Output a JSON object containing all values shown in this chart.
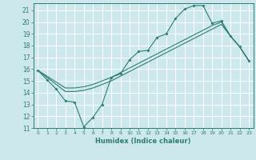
{
  "xlabel": "Humidex (Indice chaleur)",
  "xlim": [
    -0.5,
    23.5
  ],
  "ylim": [
    11,
    21.6
  ],
  "yticks": [
    11,
    12,
    13,
    14,
    15,
    16,
    17,
    18,
    19,
    20,
    21
  ],
  "xticks": [
    0,
    1,
    2,
    3,
    4,
    5,
    6,
    7,
    8,
    9,
    10,
    11,
    12,
    13,
    14,
    15,
    16,
    17,
    18,
    19,
    20,
    21,
    22,
    23
  ],
  "bg_color": "#cce8ec",
  "line_color": "#2e7d72",
  "grid_color": "#ffffff",
  "line1_x": [
    0,
    1,
    2,
    3,
    4,
    5,
    6,
    7,
    8,
    9,
    10,
    11,
    12,
    13,
    14,
    15,
    16,
    17,
    18,
    19,
    20,
    21,
    22,
    23
  ],
  "line1_y": [
    15.9,
    15.1,
    14.3,
    13.3,
    13.2,
    11.1,
    11.9,
    13.0,
    15.3,
    15.6,
    16.8,
    17.5,
    17.6,
    18.7,
    19.0,
    20.3,
    21.1,
    21.4,
    21.4,
    19.9,
    20.1,
    18.8,
    17.9,
    16.7
  ],
  "line2_x": [
    0,
    1,
    2,
    3,
    4,
    5,
    6,
    7,
    8,
    9,
    10,
    11,
    12,
    13,
    14,
    15,
    16,
    17,
    18,
    19,
    20,
    21,
    22,
    23
  ],
  "line2_y": [
    15.9,
    15.3,
    14.7,
    14.1,
    14.1,
    14.2,
    14.4,
    14.7,
    15.0,
    15.4,
    15.8,
    16.2,
    16.6,
    17.0,
    17.4,
    17.8,
    18.2,
    18.6,
    19.0,
    19.4,
    19.8,
    18.8,
    17.9,
    16.7
  ],
  "line3_x": [
    0,
    1,
    2,
    3,
    4,
    5,
    6,
    7,
    8,
    9,
    10,
    11,
    12,
    13,
    14,
    15,
    16,
    17,
    18,
    19,
    20,
    21,
    22,
    23
  ],
  "line3_y": [
    15.9,
    15.4,
    14.9,
    14.4,
    14.4,
    14.5,
    14.7,
    15.0,
    15.3,
    15.7,
    16.1,
    16.5,
    16.9,
    17.3,
    17.7,
    18.1,
    18.5,
    18.9,
    19.3,
    19.7,
    20.0,
    18.8,
    17.9,
    16.7
  ]
}
